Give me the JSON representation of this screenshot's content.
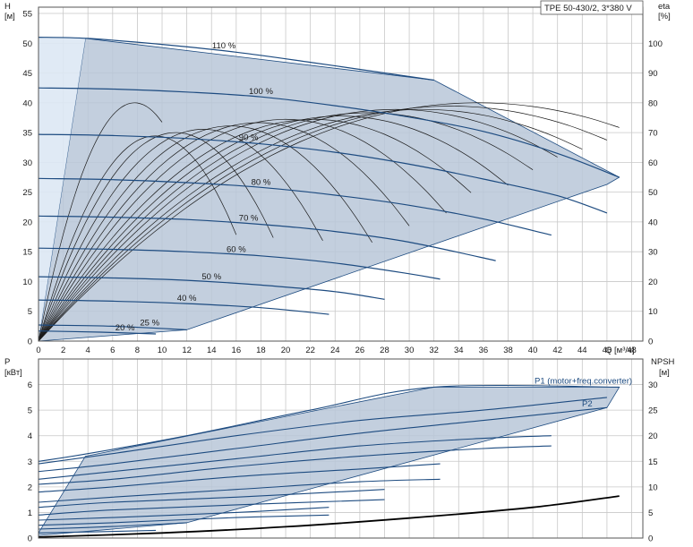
{
  "title_box": "TPE 50-430/2, 3*380 V",
  "colors": {
    "region_fill": "#b8c7d8",
    "region_edge": "#1d4b80",
    "h_curve": "#1d4b80",
    "eta_curve": "#1a1a1a",
    "npsh_curve": "#000000"
  },
  "chart_data": [
    {
      "type": "line",
      "y_left_label": "H",
      "y_left_unit": "[м]",
      "y_right_label": "eta",
      "y_right_unit": "[%]",
      "x_label": "Q [м³/ч]",
      "xlim": [
        0,
        48
      ],
      "ylim": [
        0,
        55
      ],
      "y2lim": [
        0,
        110
      ],
      "x_ticks": [
        0,
        2,
        4,
        6,
        8,
        10,
        12,
        14,
        16,
        18,
        20,
        22,
        24,
        26,
        28,
        30,
        32,
        34,
        36,
        38,
        40,
        42,
        44,
        46,
        48
      ],
      "y_ticks": [
        0,
        5,
        10,
        15,
        20,
        25,
        30,
        35,
        40,
        45,
        50,
        55
      ],
      "y2_ticks": [
        0,
        10,
        20,
        30,
        40,
        50,
        60,
        70,
        80,
        90,
        100
      ],
      "grid": true,
      "operating_region": {
        "q": [
          0,
          3.8,
          32,
          47,
          46,
          12,
          0
        ],
        "h": [
          0,
          50.8,
          43.8,
          27.5,
          26.3,
          1.9,
          0
        ]
      },
      "series": [
        {
          "name": "110 %",
          "label_q": 15,
          "q": [
            0,
            4,
            10,
            16,
            22,
            28,
            32
          ],
          "h": [
            51,
            50.8,
            49.8,
            48.5,
            46.8,
            45.0,
            43.8
          ]
        },
        {
          "name": "100 %",
          "label_q": 18,
          "q": [
            0,
            6,
            12,
            18,
            24,
            30,
            36,
            42,
            47
          ],
          "h": [
            42.5,
            42.3,
            41.8,
            41.0,
            39.5,
            37.6,
            35.2,
            31.5,
            27.5
          ]
        },
        {
          "name": "90 %",
          "label_q": 17,
          "q": [
            0,
            6,
            12,
            18,
            24,
            30,
            36,
            42,
            46
          ],
          "h": [
            34.7,
            34.5,
            34.0,
            33.1,
            31.7,
            29.7,
            27.2,
            24.4,
            21.5
          ]
        },
        {
          "name": "80 %",
          "label_q": 18,
          "q": [
            0,
            6,
            12,
            18,
            24,
            30,
            36,
            41.5
          ],
          "h": [
            27.3,
            27.1,
            26.6,
            25.8,
            24.5,
            22.8,
            20.5,
            17.8
          ]
        },
        {
          "name": "70 %",
          "label_q": 17,
          "q": [
            0,
            6,
            12,
            18,
            24,
            30,
            37
          ],
          "h": [
            21.0,
            20.8,
            20.4,
            19.6,
            18.4,
            16.6,
            13.5
          ]
        },
        {
          "name": "60 %",
          "label_q": 16,
          "q": [
            0,
            6,
            12,
            18,
            24,
            30,
            32.5
          ],
          "h": [
            15.6,
            15.4,
            15.0,
            14.3,
            13.1,
            11.3,
            10.4
          ]
        },
        {
          "name": "50 %",
          "label_q": 14,
          "q": [
            0,
            6,
            12,
            18,
            24,
            28
          ],
          "h": [
            10.8,
            10.6,
            10.2,
            9.4,
            8.3,
            7.0
          ]
        },
        {
          "name": "40 %",
          "label_q": 12,
          "q": [
            0,
            6,
            12,
            18,
            23.5
          ],
          "h": [
            6.9,
            6.7,
            6.3,
            5.6,
            4.5
          ]
        },
        {
          "name": "25 %",
          "label_q": 9,
          "q": [
            0,
            6,
            12
          ],
          "h": [
            2.7,
            2.5,
            1.9
          ]
        },
        {
          "name": "20 %",
          "label_q": 7,
          "q": [
            0,
            5,
            9.5
          ],
          "h": [
            1.7,
            1.5,
            1.2
          ]
        }
      ],
      "efficiency_curves": [
        {
          "scale": 1.1,
          "peak_q": 32,
          "peak": 72,
          "q_end": 47
        },
        {
          "scale": 1.05,
          "peak_q": 30,
          "peak": 71,
          "q_end": 46
        },
        {
          "scale": 1.0,
          "peak_q": 28,
          "peak": 70,
          "q_end": 44
        },
        {
          "scale": 0.95,
          "peak_q": 26,
          "peak": 70,
          "q_end": 42
        },
        {
          "scale": 0.9,
          "peak_q": 24,
          "peak": 69,
          "q_end": 40
        },
        {
          "scale": 0.85,
          "peak_q": 22,
          "peak": 68,
          "q_end": 38
        },
        {
          "scale": 0.8,
          "peak_q": 20,
          "peak": 67,
          "q_end": 35
        },
        {
          "scale": 0.75,
          "peak_q": 18,
          "peak": 67,
          "q_end": 33
        },
        {
          "scale": 0.7,
          "peak_q": 16,
          "peak": 66,
          "q_end": 30
        },
        {
          "scale": 0.65,
          "peak_q": 14,
          "peak": 65,
          "q_end": 27
        },
        {
          "scale": 0.6,
          "peak_q": 12,
          "peak": 64,
          "q_end": 23
        },
        {
          "scale": 0.55,
          "peak_q": 10,
          "peak": 63,
          "q_end": 19
        },
        {
          "scale": 0.5,
          "peak_q": 8.5,
          "peak": 62,
          "q_end": 16
        },
        {
          "scale": 0.45,
          "peak_q": 7,
          "peak": 72,
          "q_end": 10
        }
      ]
    },
    {
      "type": "line",
      "y_left_label": "P",
      "y_left_unit": "[кВт]",
      "y_right_label": "NPSH",
      "y_right_unit": "[м]",
      "xlim": [
        0,
        48
      ],
      "ylim": [
        0,
        7
      ],
      "y2lim": [
        0,
        35
      ],
      "y_ticks": [
        0,
        1,
        2,
        3,
        4,
        5,
        6
      ],
      "y2_ticks": [
        0,
        5,
        10,
        15,
        20,
        25,
        30
      ],
      "grid": true,
      "operating_region": {
        "q": [
          0,
          3.8,
          32,
          47,
          46,
          12,
          0
        ],
        "p": [
          0.2,
          3.2,
          5.9,
          5.9,
          5.1,
          0.6,
          0.1
        ]
      },
      "series": [
        {
          "name": "P1 (motor+freq.converter)",
          "q": [
            0,
            4,
            12,
            22,
            32,
            47
          ],
          "p": [
            3.0,
            3.3,
            4.0,
            5.0,
            5.9,
            5.9
          ]
        },
        {
          "name": "P2",
          "q": [
            0,
            6,
            16,
            26,
            36,
            46
          ],
          "p": [
            2.9,
            3.3,
            4.0,
            4.6,
            5.0,
            5.5
          ]
        },
        {
          "name": "",
          "q": [
            0,
            6,
            16,
            26,
            36,
            46
          ],
          "p": [
            2.6,
            2.9,
            3.5,
            4.1,
            4.6,
            5.1
          ]
        },
        {
          "name": "",
          "q": [
            0,
            6,
            16,
            26,
            36,
            41.5
          ],
          "p": [
            2.3,
            2.6,
            3.1,
            3.6,
            3.9,
            4.0
          ]
        },
        {
          "name": "",
          "q": [
            0,
            6,
            16,
            26,
            36,
            41.5
          ],
          "p": [
            2.1,
            2.3,
            2.8,
            3.2,
            3.5,
            3.6
          ]
        },
        {
          "name": "",
          "q": [
            0,
            6,
            16,
            26,
            32.5
          ],
          "p": [
            1.8,
            2.0,
            2.4,
            2.7,
            2.9
          ]
        },
        {
          "name": "",
          "q": [
            0,
            6,
            16,
            26,
            32.5
          ],
          "p": [
            1.4,
            1.6,
            1.9,
            2.2,
            2.3
          ]
        },
        {
          "name": "",
          "q": [
            0,
            6,
            16,
            28
          ],
          "p": [
            1.2,
            1.4,
            1.6,
            1.9
          ]
        },
        {
          "name": "",
          "q": [
            0,
            6,
            16,
            28
          ],
          "p": [
            0.9,
            1.1,
            1.3,
            1.5
          ]
        },
        {
          "name": "",
          "q": [
            0,
            6,
            16,
            23.5
          ],
          "p": [
            0.7,
            0.8,
            1.0,
            1.2
          ]
        },
        {
          "name": "",
          "q": [
            0,
            6,
            16,
            23.5
          ],
          "p": [
            0.5,
            0.6,
            0.8,
            0.9
          ]
        },
        {
          "name": "",
          "q": [
            0,
            6,
            12
          ],
          "p": [
            0.35,
            0.45,
            0.6
          ]
        },
        {
          "name": "",
          "q": [
            0,
            5,
            9.5
          ],
          "p": [
            0.2,
            0.25,
            0.3
          ]
        }
      ],
      "npsh": {
        "q": [
          0,
          10,
          20,
          30,
          40,
          47
        ],
        "npsh": [
          0.2,
          1.0,
          2.2,
          3.9,
          6.0,
          8.2
        ]
      }
    }
  ]
}
